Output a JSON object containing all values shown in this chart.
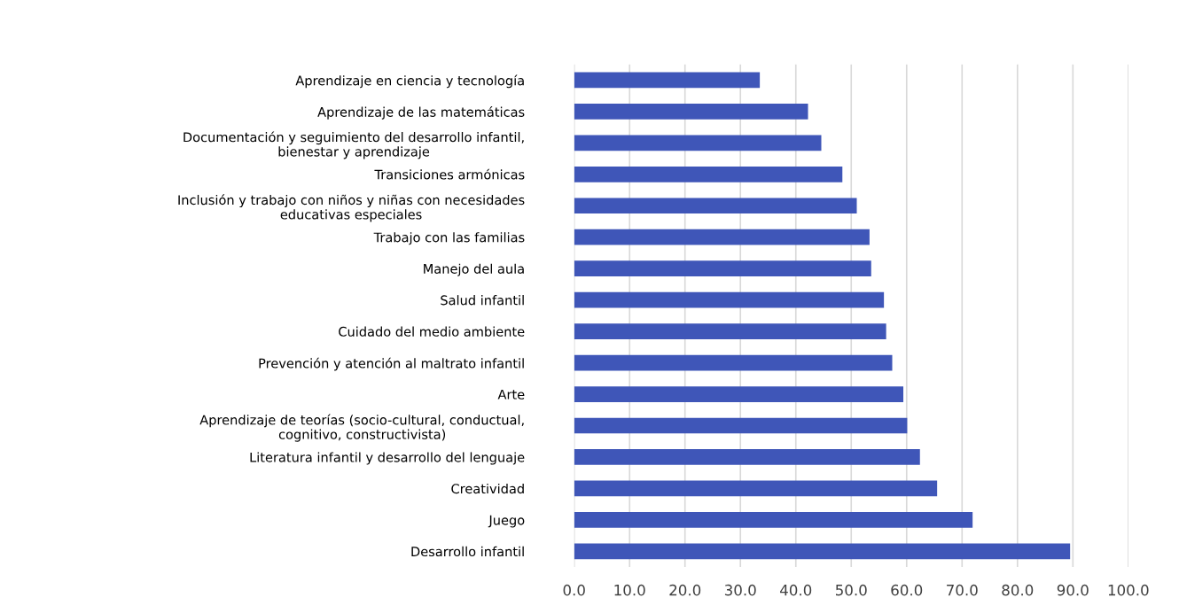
{
  "chart_data": {
    "type": "bar",
    "orientation": "horizontal",
    "categories": [
      "Aprendizaje en ciencia y tecnología",
      "Aprendizaje de las matemáticas",
      "Documentación y seguimiento del desarrollo infantil,\nbienestar y aprendizaje",
      "Transiciones armónicas",
      "Inclusión y trabajo con niños y niñas con necesidades\neducativas especiales",
      "Trabajo con las familias",
      "Manejo del aula",
      "Salud infantil",
      "Cuidado del medio ambiente",
      "Prevención y atención al maltrato infantil",
      "Arte",
      "Aprendizaje de teorías (socio-cultural, conductual,\ncognitivo, constructivista)",
      "Literatura infantil y desarrollo del lenguaje",
      "Creatividad",
      "Juego",
      "Desarrollo infantil"
    ],
    "values": [
      33.5,
      42.2,
      44.6,
      48.4,
      51.0,
      53.3,
      53.6,
      55.9,
      56.3,
      57.4,
      59.4,
      60.1,
      62.4,
      65.5,
      71.9,
      89.5
    ],
    "color": "#3f56b8",
    "xlim": [
      0,
      100
    ],
    "xticks": [
      {
        "value": 0,
        "label": "0.0"
      },
      {
        "value": 10,
        "label": "10.0"
      },
      {
        "value": 20,
        "label": "20.0"
      },
      {
        "value": 30,
        "label": "30.0"
      },
      {
        "value": 40,
        "label": "40.0"
      },
      {
        "value": 50,
        "label": "50.0"
      },
      {
        "value": 60,
        "label": "60.0"
      },
      {
        "value": 70,
        "label": "70.0"
      },
      {
        "value": 80,
        "label": "80.0"
      },
      {
        "value": 90,
        "label": "90.0"
      },
      {
        "value": 100,
        "label": "100.0"
      }
    ],
    "grid": "x"
  }
}
